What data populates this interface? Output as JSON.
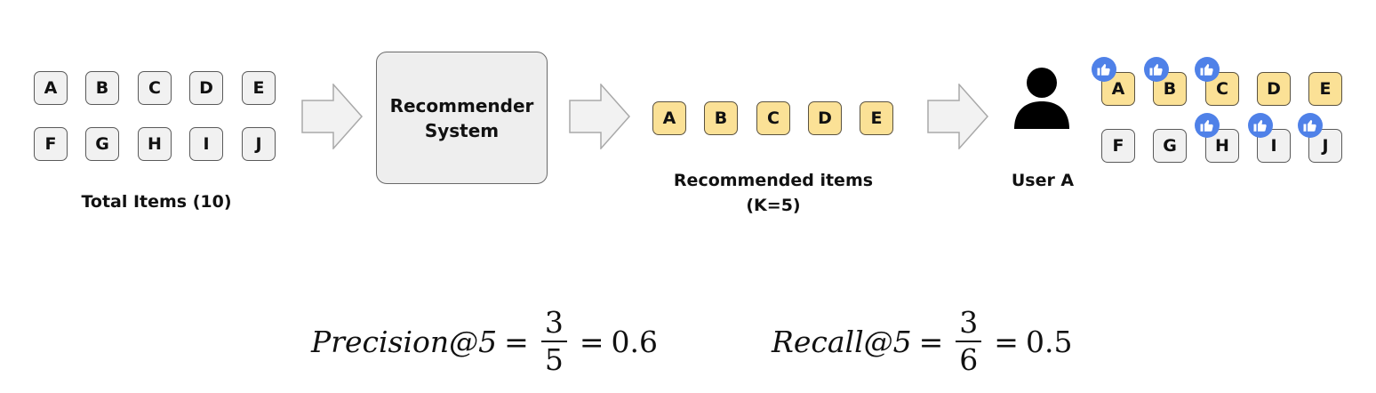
{
  "total_items": {
    "row1": [
      "A",
      "B",
      "C",
      "D",
      "E"
    ],
    "row2": [
      "F",
      "G",
      "H",
      "I",
      "J"
    ],
    "caption": "Total Items (10)"
  },
  "recommender": {
    "line1": "Recommender",
    "line2": "System"
  },
  "recommended": {
    "items": [
      "A",
      "B",
      "C",
      "D",
      "E"
    ],
    "caption_line1": "Recommended items",
    "caption_line2": "(K=5)"
  },
  "user": {
    "caption": "User A",
    "row1": [
      "A",
      "B",
      "C",
      "D",
      "E"
    ],
    "row2": [
      "F",
      "G",
      "H",
      "I",
      "J"
    ],
    "liked": [
      "A",
      "B",
      "C",
      "H",
      "I",
      "J"
    ],
    "recommended_highlight": [
      "A",
      "B",
      "C",
      "D",
      "E"
    ]
  },
  "precision": {
    "label": "Precision@5",
    "eq": "=",
    "numerator": "3",
    "denominator": "5",
    "result": "0.6"
  },
  "recall": {
    "label": "Recall@5",
    "eq": "=",
    "numerator": "3",
    "denominator": "6",
    "result": "0.5"
  },
  "colors": {
    "tile_fill": "#f1f1f1",
    "recommended_fill": "#fbe196",
    "like_badge": "#4f81e8",
    "arrow_fill": "#f2f2f2",
    "person": "#000000"
  },
  "icons": {
    "like": "thumbs-up-icon",
    "person": "user-icon",
    "arrow": "block-arrow-right-icon"
  }
}
